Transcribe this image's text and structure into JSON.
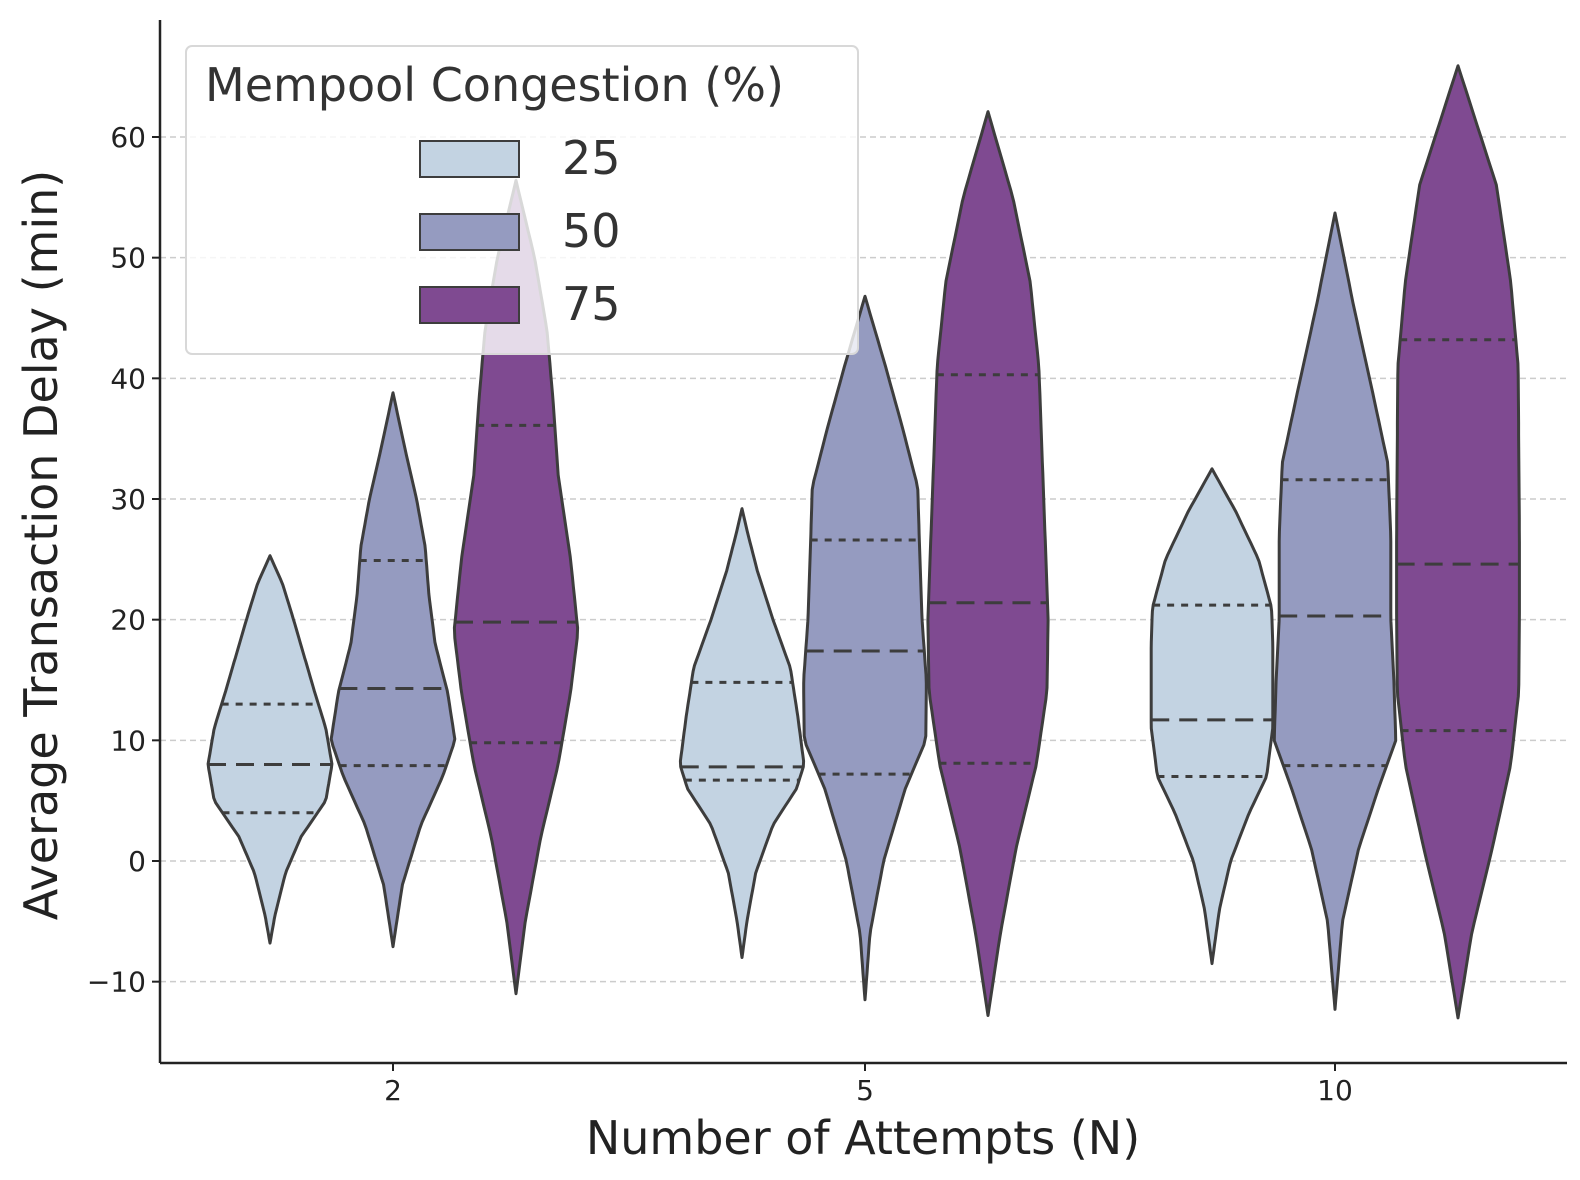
{
  "chart_data": {
    "type": "violin",
    "xlabel": "Number of Attempts (N)",
    "ylabel": "Average Transaction Delay (min)",
    "ylim": [
      -17,
      70
    ],
    "yticks": [
      -10,
      0,
      10,
      20,
      30,
      40,
      50,
      60
    ],
    "ytick_labels": [
      "−10",
      "0",
      "10",
      "20",
      "30",
      "40",
      "50",
      "60"
    ],
    "categories": [
      "2",
      "5",
      "10"
    ],
    "grid": "horizontal-dashed",
    "legend": {
      "title": "Mempool Congestion (%)",
      "placement": "top-left",
      "entries": [
        "25",
        "50",
        "75"
      ]
    },
    "colors": {
      "25": "#c3d3e2",
      "50": "#959bc0",
      "75": "#7f4a91",
      "outline": "#3d3d3d"
    },
    "series": [
      {
        "name": "25",
        "violins": [
          {
            "category": "2",
            "min": -6.8,
            "max": 25.3,
            "q1": 4.0,
            "median": 8.0,
            "q3": 13.0,
            "profile": [
              [
                -6.8,
                0.0
              ],
              [
                -4.5,
                0.08
              ],
              [
                -1,
                0.25
              ],
              [
                2,
                0.5
              ],
              [
                5,
                0.9
              ],
              [
                8,
                1.0
              ],
              [
                11,
                0.9
              ],
              [
                14,
                0.72
              ],
              [
                17,
                0.55
              ],
              [
                20,
                0.38
              ],
              [
                23,
                0.2
              ],
              [
                25.3,
                0.0
              ]
            ]
          },
          {
            "category": "5",
            "min": -8.0,
            "max": 29.2,
            "q1": 6.7,
            "median": 7.8,
            "q3": 14.8,
            "profile": [
              [
                -8,
                0.0
              ],
              [
                -5,
                0.08
              ],
              [
                -1,
                0.22
              ],
              [
                3,
                0.5
              ],
              [
                6,
                0.88
              ],
              [
                8,
                1.0
              ],
              [
                12,
                0.9
              ],
              [
                16,
                0.78
              ],
              [
                20,
                0.5
              ],
              [
                24,
                0.25
              ],
              [
                27,
                0.1
              ],
              [
                29.2,
                0.0
              ]
            ]
          },
          {
            "category": "10",
            "min": -8.5,
            "max": 32.5,
            "q1": 7.0,
            "median": 11.7,
            "q3": 21.2,
            "profile": [
              [
                -8.5,
                0.0
              ],
              [
                -4,
                0.12
              ],
              [
                0,
                0.3
              ],
              [
                4,
                0.6
              ],
              [
                7,
                0.88
              ],
              [
                11,
                0.98
              ],
              [
                14,
                0.98
              ],
              [
                18,
                0.98
              ],
              [
                21,
                0.96
              ],
              [
                25,
                0.75
              ],
              [
                29,
                0.38
              ],
              [
                32.5,
                0.0
              ]
            ]
          }
        ]
      },
      {
        "name": "50",
        "violins": [
          {
            "category": "2",
            "min": -7.1,
            "max": 38.8,
            "q1": 7.9,
            "median": 14.3,
            "q3": 24.9,
            "profile": [
              [
                -7.1,
                0.0
              ],
              [
                -2,
                0.15
              ],
              [
                3,
                0.45
              ],
              [
                7,
                0.8
              ],
              [
                10,
                1.0
              ],
              [
                14,
                0.88
              ],
              [
                18,
                0.68
              ],
              [
                22,
                0.58
              ],
              [
                26,
                0.52
              ],
              [
                30,
                0.38
              ],
              [
                34,
                0.2
              ],
              [
                38.8,
                0.0
              ]
            ]
          },
          {
            "category": "5",
            "min": -11.5,
            "max": 46.8,
            "q1": 7.2,
            "median": 17.4,
            "q3": 26.6,
            "profile": [
              [
                -11.5,
                0.0
              ],
              [
                -6,
                0.08
              ],
              [
                0,
                0.3
              ],
              [
                6,
                0.65
              ],
              [
                10,
                0.98
              ],
              [
                15,
                0.99
              ],
              [
                20,
                0.92
              ],
              [
                26,
                0.88
              ],
              [
                31,
                0.85
              ],
              [
                36,
                0.6
              ],
              [
                41,
                0.33
              ],
              [
                46.8,
                0.0
              ]
            ]
          },
          {
            "category": "10",
            "min": -12.3,
            "max": 53.7,
            "q1": 7.9,
            "median": 20.3,
            "q3": 31.6,
            "profile": [
              [
                -12.3,
                0.0
              ],
              [
                -5,
                0.12
              ],
              [
                1,
                0.38
              ],
              [
                6,
                0.7
              ],
              [
                10,
                0.98
              ],
              [
                15,
                0.95
              ],
              [
                20,
                0.9
              ],
              [
                27,
                0.9
              ],
              [
                33,
                0.85
              ],
              [
                39,
                0.6
              ],
              [
                46,
                0.3
              ],
              [
                53.7,
                0.0
              ]
            ]
          }
        ]
      },
      {
        "name": "75",
        "violins": [
          {
            "category": "2",
            "min": -11.0,
            "max": 56.4,
            "q1": 9.8,
            "median": 19.8,
            "q3": 36.1,
            "profile": [
              [
                -11,
                0.0
              ],
              [
                -5,
                0.15
              ],
              [
                2,
                0.4
              ],
              [
                8,
                0.68
              ],
              [
                14,
                0.88
              ],
              [
                19,
                1.0
              ],
              [
                25,
                0.88
              ],
              [
                32,
                0.68
              ],
              [
                38,
                0.6
              ],
              [
                44,
                0.5
              ],
              [
                50,
                0.3
              ],
              [
                56.4,
                0.0
              ]
            ]
          },
          {
            "category": "5",
            "min": -12.8,
            "max": 62.1,
            "q1": 8.1,
            "median": 21.4,
            "q3": 40.3,
            "profile": [
              [
                -12.8,
                0.0
              ],
              [
                -6,
                0.2
              ],
              [
                1,
                0.45
              ],
              [
                8,
                0.78
              ],
              [
                14,
                0.95
              ],
              [
                20,
                0.97
              ],
              [
                27,
                0.92
              ],
              [
                34,
                0.87
              ],
              [
                41,
                0.82
              ],
              [
                48,
                0.68
              ],
              [
                55,
                0.4
              ],
              [
                62.1,
                0.0
              ]
            ]
          },
          {
            "category": "10",
            "min": -13.0,
            "max": 65.9,
            "q1": 10.8,
            "median": 24.6,
            "q3": 43.2,
            "profile": [
              [
                -13,
                0.0
              ],
              [
                -6,
                0.22
              ],
              [
                1,
                0.55
              ],
              [
                8,
                0.85
              ],
              [
                14,
                0.98
              ],
              [
                20,
                0.99
              ],
              [
                27,
                0.99
              ],
              [
                34,
                0.98
              ],
              [
                41,
                0.97
              ],
              [
                48,
                0.85
              ],
              [
                56,
                0.62
              ],
              [
                65.9,
                0.0
              ]
            ]
          }
        ]
      }
    ]
  }
}
